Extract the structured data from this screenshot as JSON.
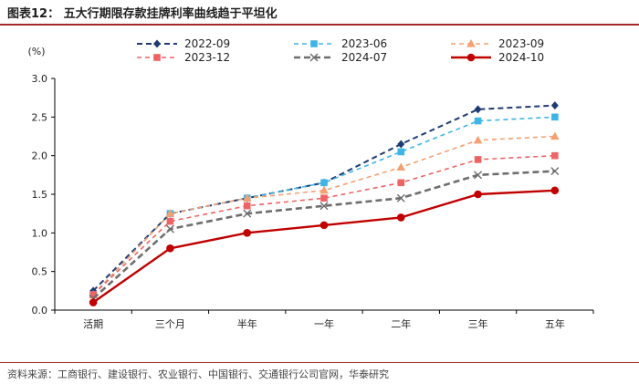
{
  "header": {
    "title": "图表12：  五大行期限存款挂牌利率曲线趋于平坦化"
  },
  "footer": {
    "source": "资料来源：工商银行、建设银行、农业银行、中国银行、交通银行公司官网，华泰研究"
  },
  "chart_data": {
    "type": "line",
    "unit_label": "(%)",
    "categories": [
      "活期",
      "三个月",
      "半年",
      "一年",
      "二年",
      "三年",
      "五年"
    ],
    "ylim": [
      0.0,
      3.0
    ],
    "yticks": [
      "0.0",
      "0.5",
      "1.0",
      "1.5",
      "2.0",
      "2.5",
      "3.0"
    ],
    "grid": false,
    "legend_position": "top",
    "series": [
      {
        "name": "2022-09",
        "values": [
          0.25,
          1.25,
          1.45,
          1.65,
          2.15,
          2.6,
          2.65
        ],
        "color": "#1f3b73",
        "dash": "6,4",
        "marker": "diamond",
        "width": 2
      },
      {
        "name": "2023-06",
        "values": [
          0.2,
          1.25,
          1.45,
          1.65,
          2.05,
          2.45,
          2.5
        ],
        "color": "#3db5e6",
        "dash": "5,4",
        "marker": "square",
        "width": 1.6
      },
      {
        "name": "2023-09",
        "values": [
          0.2,
          1.25,
          1.45,
          1.55,
          1.85,
          2.2,
          2.25
        ],
        "color": "#f5a070",
        "dash": "5,4",
        "marker": "triangle",
        "width": 1.6
      },
      {
        "name": "2023-12",
        "values": [
          0.2,
          1.15,
          1.35,
          1.45,
          1.65,
          1.95,
          2.0
        ],
        "color": "#ee6464",
        "dash": "5,4",
        "marker": "square",
        "width": 1.6
      },
      {
        "name": "2024-07",
        "values": [
          0.15,
          1.05,
          1.25,
          1.35,
          1.45,
          1.75,
          1.8
        ],
        "color": "#6e6e6e",
        "dash": "7,4",
        "marker": "x",
        "width": 2.6
      },
      {
        "name": "2024-10",
        "values": [
          0.1,
          0.8,
          1.0,
          1.1,
          1.2,
          1.5,
          1.55
        ],
        "color": "#c00000",
        "dash": "",
        "marker": "circle",
        "width": 2.4
      }
    ]
  }
}
